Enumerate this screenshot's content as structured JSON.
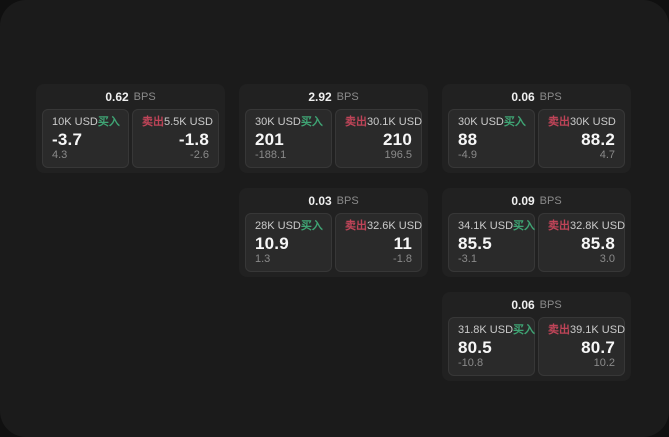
{
  "labels": {
    "bps_unit": "BPS",
    "buy": "买入",
    "sell": "卖出"
  },
  "colors": {
    "outer_background": "#101010",
    "page_background": "#1b1b1b",
    "card_background": "#212121",
    "panel_background": "#2a2a2a",
    "buy_green": "#3fa474",
    "sell_red": "#bf4458",
    "value_text": "#f7f7f7",
    "muted_text": "#8a8a8a",
    "label_text": "#cbcbcb"
  },
  "cards": [
    {
      "bps": "0.62",
      "buy": {
        "amount": "10K USD",
        "price": "-3.7",
        "change": "4.3"
      },
      "sell": {
        "amount": "5.5K USD",
        "price": "-1.8",
        "change": "-2.6"
      }
    },
    {
      "bps": "2.92",
      "buy": {
        "amount": "30K USD",
        "price": "201",
        "change": "-188.1"
      },
      "sell": {
        "amount": "30.1K USD",
        "price": "210",
        "change": "196.5"
      }
    },
    {
      "bps": "0.06",
      "buy": {
        "amount": "30K USD",
        "price": "88",
        "change": "-4.9"
      },
      "sell": {
        "amount": "30K USD",
        "price": "88.2",
        "change": "4.7"
      }
    },
    {
      "bps": "0.03",
      "buy": {
        "amount": "28K USD",
        "price": "10.9",
        "change": "1.3"
      },
      "sell": {
        "amount": "32.6K USD",
        "price": "11",
        "change": "-1.8"
      }
    },
    {
      "bps": "0.09",
      "buy": {
        "amount": "34.1K USD",
        "price": "85.5",
        "change": "-3.1"
      },
      "sell": {
        "amount": "32.8K USD",
        "price": "85.8",
        "change": "3.0"
      }
    },
    {
      "bps": "0.06",
      "buy": {
        "amount": "31.8K USD",
        "price": "80.5",
        "change": "-10.8"
      },
      "sell": {
        "amount": "39.1K USD",
        "price": "80.7",
        "change": "10.2"
      }
    }
  ]
}
